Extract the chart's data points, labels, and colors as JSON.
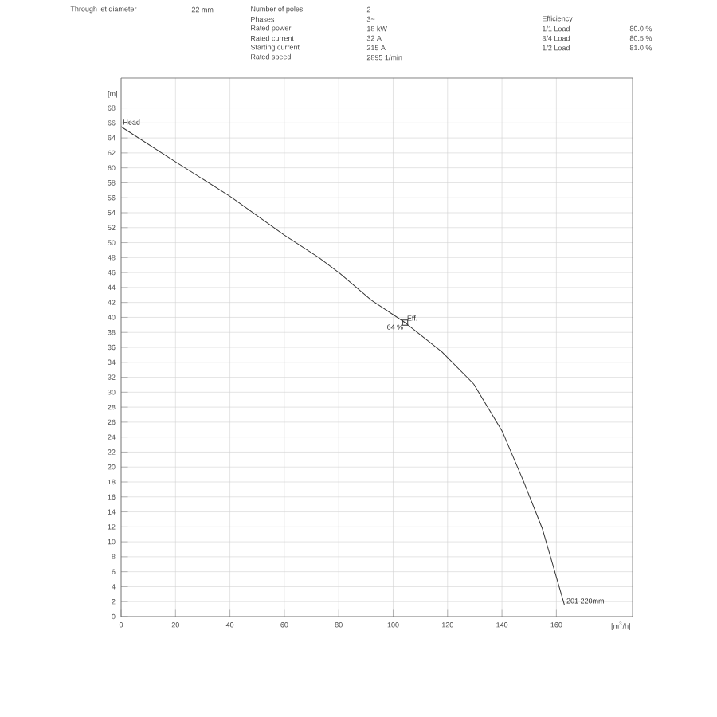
{
  "chart_data": {
    "type": "line",
    "xlabel": "[m$^{3}$/h]",
    "ylabel": "[m]",
    "xlim": [
      0,
      188
    ],
    "ylim": [
      0,
      72
    ],
    "xticks": [
      0,
      20,
      40,
      60,
      80,
      100,
      120,
      140,
      160
    ],
    "yticks": [
      0,
      2,
      4,
      6,
      8,
      10,
      12,
      14,
      16,
      18,
      20,
      22,
      24,
      26,
      28,
      30,
      32,
      34,
      36,
      38,
      40,
      42,
      44,
      46,
      48,
      50,
      52,
      54,
      56,
      58,
      60,
      62,
      64,
      66,
      68
    ],
    "grid": true,
    "line_style": "solid",
    "series": [
      {
        "name": "Head",
        "color": "#333333",
        "marker": "none",
        "x": [
          0,
          20,
          40,
          60,
          72.7,
          80.4,
          92,
          104.4,
          117.9,
          129.6,
          140.2,
          147.8,
          154.8,
          163
        ],
        "values": [
          65.5,
          60.8,
          56.2,
          51,
          48,
          45.9,
          42.3,
          39.3,
          35.4,
          31.1,
          24.7,
          18.2,
          11.8,
          1.5
        ]
      },
      {
        "name": "Eff.",
        "type": "scatter",
        "color": "#333333",
        "marker": "square",
        "x": [
          104.4
        ],
        "values": [
          39.3
        ]
      }
    ],
    "annotations": [
      "Through let diameter",
      "22 mm",
      "Number of poles",
      "2",
      "Phases",
      "3~",
      "Rated power",
      "18 kW",
      "Rated current",
      "32 A",
      "Starting current",
      "215 A",
      "Rated speed",
      "2895 1/min",
      "Efficiency",
      "1/1 Load",
      "80.0 %",
      "3/4 Load",
      "80.5 %",
      "1/2 Load",
      "81.0 %",
      {
        "text": "64 %",
        "x": 104.4,
        "y": 39.3
      },
      {
        "text": "201 220mm",
        "x": 163,
        "y": 1.5
      }
    ]
  }
}
